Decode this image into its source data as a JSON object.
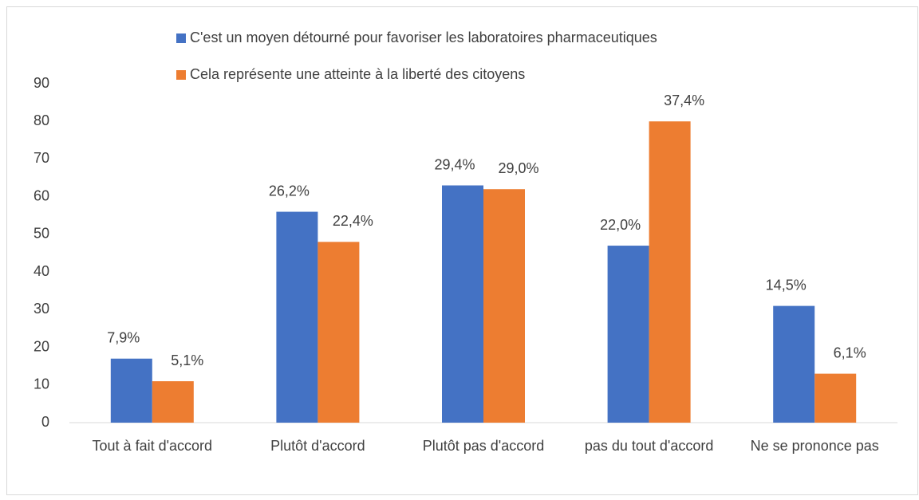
{
  "chart_data": {
    "type": "bar",
    "categories": [
      "Tout à fait d'accord",
      "Plutôt d'accord",
      "Plutôt pas d'accord",
      "pas du tout d'accord",
      "Ne se prononce pas"
    ],
    "series": [
      {
        "name": "C'est un moyen détourné pour favoriser les laboratoires pharmaceutiques",
        "color": "#4472c4",
        "values": [
          17,
          56,
          63,
          47,
          31
        ],
        "percent_labels": [
          "7,9%",
          "26,2%",
          "29,4%",
          "22,0%",
          "14,5%"
        ]
      },
      {
        "name": "Cela représente une atteinte à la liberté des citoyens",
        "color": "#ed7d31",
        "values": [
          11,
          48,
          62,
          80,
          13
        ],
        "percent_labels": [
          "5,1%",
          "22,4%",
          "29,0%",
          "37,4%",
          "6,1%"
        ]
      }
    ],
    "ylim": [
      0,
      90
    ],
    "yticks": [
      0,
      10,
      20,
      30,
      40,
      50,
      60,
      70,
      80,
      90
    ],
    "grid": false,
    "legend": "top"
  }
}
